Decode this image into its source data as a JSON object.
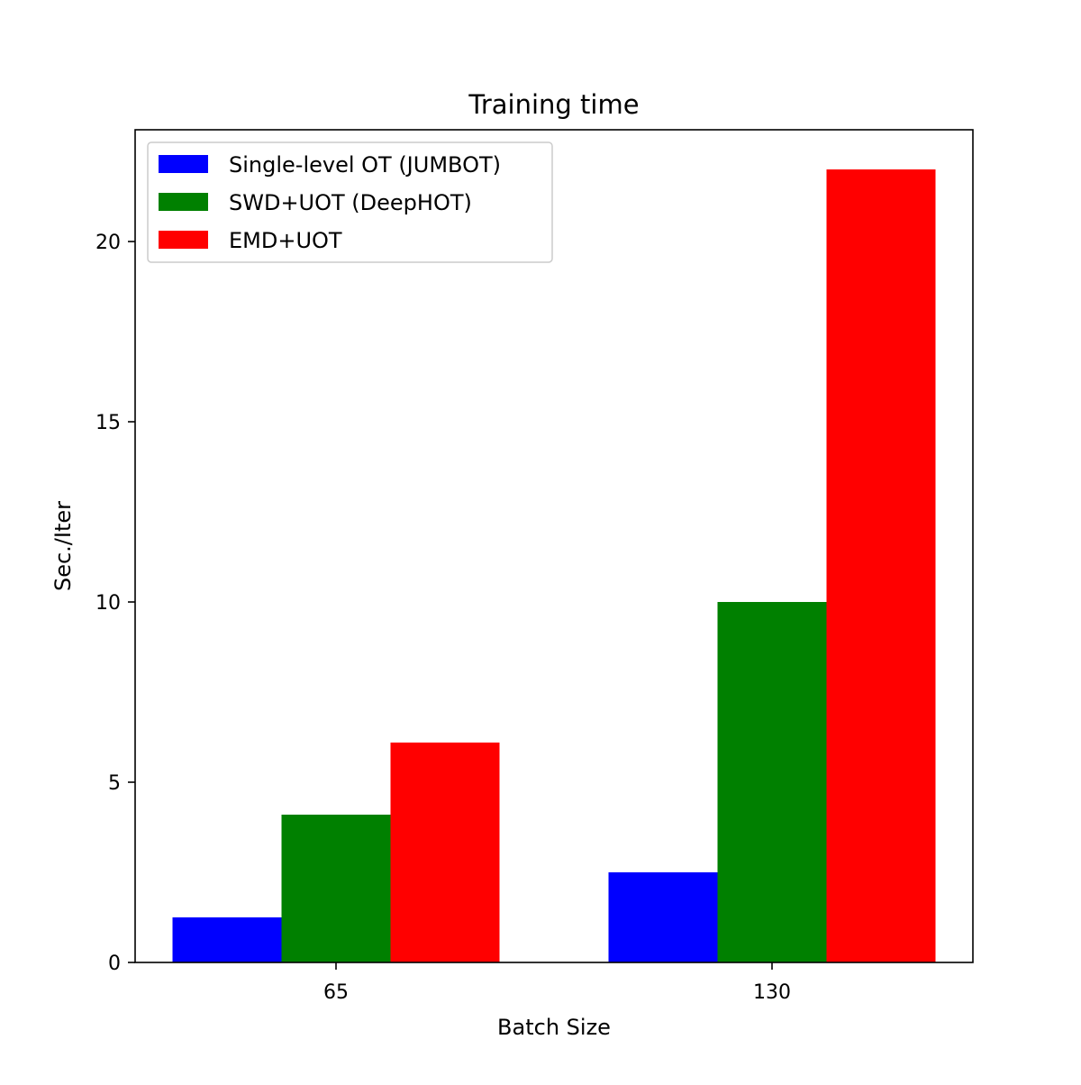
{
  "chart_data": {
    "type": "bar",
    "title": "Training time",
    "xlabel": "Batch Size",
    "ylabel": "Sec./Iter",
    "categories": [
      "65",
      "130"
    ],
    "series": [
      {
        "name": "Single-level OT (JUMBOT)",
        "color": "#0000ff",
        "values": [
          1.25,
          2.5
        ]
      },
      {
        "name": "SWD+UOT (DeepHOT)",
        "color": "#008000",
        "values": [
          4.1,
          10.0
        ]
      },
      {
        "name": "EMD+UOT",
        "color": "#ff0000",
        "values": [
          6.1,
          22.0
        ]
      }
    ],
    "ylim": [
      0,
      23.1
    ],
    "yticks": [
      0,
      5,
      10,
      15,
      20
    ],
    "grid": false,
    "legend_position": "top-left"
  }
}
